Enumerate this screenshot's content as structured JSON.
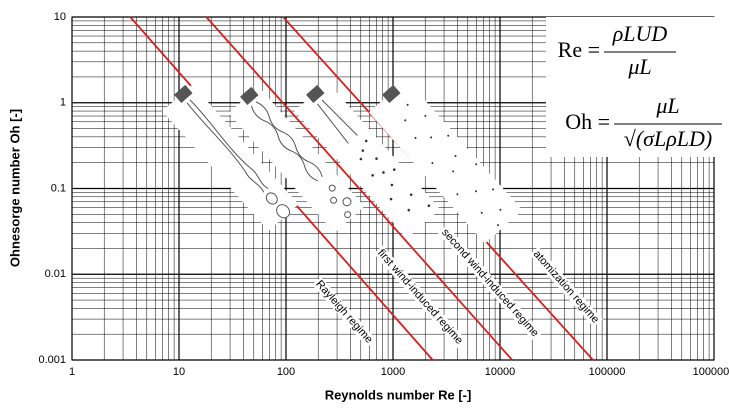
{
  "chart_data": {
    "type": "line",
    "x_label": "Reynolds number Re [-]",
    "y_label": "Ohnesorge number Oh [-]",
    "log_x": true,
    "log_y": true,
    "grid": true,
    "minor_grid": true,
    "xlim": [
      1,
      1000000
    ],
    "ylim": [
      0.001,
      10
    ],
    "xticks": [
      1,
      10,
      100,
      1000,
      10000,
      100000,
      1000000
    ],
    "yticks": [
      0.001,
      0.01,
      0.1,
      1,
      10
    ],
    "series": [
      {
        "color": "#d62020",
        "x": [
          3.5,
          2350
        ],
        "values": [
          10,
          0.001
        ]
      },
      {
        "color": "#d62020",
        "x": [
          18,
          13000
        ],
        "values": [
          10,
          0.001
        ]
      },
      {
        "color": "#d62020",
        "x": [
          94,
          74000
        ],
        "values": [
          10,
          0.001
        ]
      }
    ],
    "annotations": [
      "Rayleigh regime",
      "first wind-induced regime",
      "second wind-induced regime",
      "atomization regime"
    ],
    "equations": [
      {
        "lhs": "Re =",
        "numerator": "ρLUD",
        "denominator": "μL"
      },
      {
        "lhs": "Oh =",
        "numerator": "μL",
        "denominator": "√(σLρLD)"
      }
    ]
  }
}
